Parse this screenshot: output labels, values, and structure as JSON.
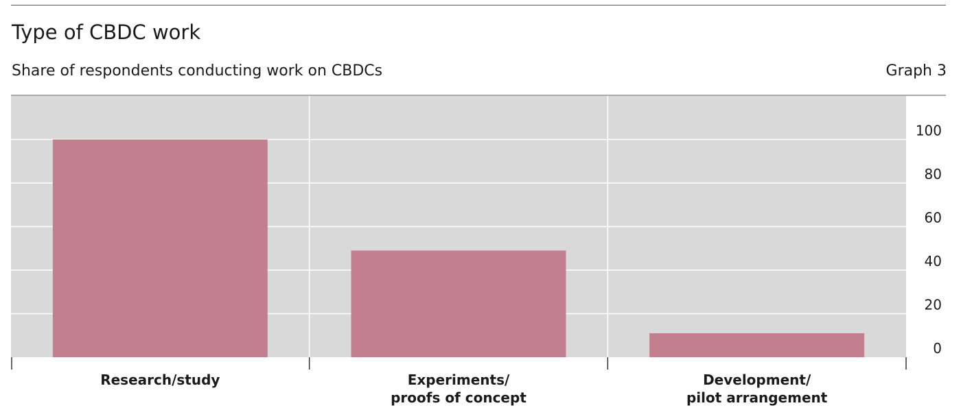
{
  "header": {
    "title": "Type of CBDC work",
    "subtitle": "Share of respondents conducting work on CBDCs",
    "graph_number": "Graph 3"
  },
  "colors": {
    "bar": "#c27f8f",
    "plot_bg": "#d9d9d9",
    "grid": "#ffffff"
  },
  "chart_data": {
    "type": "bar",
    "title": "Type of CBDC work",
    "subtitle": "Share of respondents conducting work on CBDCs",
    "categories": [
      [
        "Research/study"
      ],
      [
        "Experiments/",
        "proofs of concept"
      ],
      [
        "Development/",
        "pilot arrangement"
      ]
    ],
    "values": [
      100,
      49,
      11
    ],
    "ylim": [
      0,
      120
    ],
    "yticks": [
      0,
      20,
      40,
      60,
      80,
      100
    ],
    "y_axis_side": "right",
    "grid": true,
    "legend": "none"
  }
}
